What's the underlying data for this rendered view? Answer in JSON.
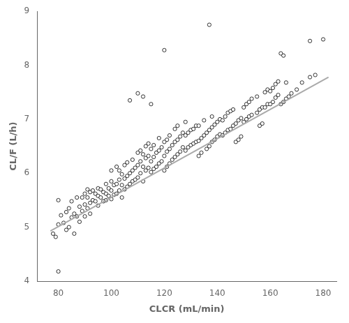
{
  "chart_data": {
    "type": "scatter",
    "x_label": "CLCR (mL/min)",
    "y_label": "CL/F (L/h)",
    "xlim": [
      72,
      185
    ],
    "ylim": [
      4.0,
      9.0
    ],
    "xticks": [
      80,
      100,
      120,
      140,
      160,
      180
    ],
    "yticks": [
      4,
      5,
      6,
      7,
      8,
      9
    ],
    "grid": false,
    "series": [
      {
        "type": "scatter",
        "marker": "circle",
        "color": "black",
        "x": [
          78,
          79,
          80,
          80,
          81,
          82,
          83,
          83,
          84,
          84,
          85,
          85,
          86,
          86,
          87,
          87,
          88,
          88,
          89,
          89,
          80,
          90,
          90,
          90,
          91,
          91,
          91,
          92,
          92,
          92,
          93,
          93,
          94,
          94,
          95,
          95,
          95,
          96,
          96,
          97,
          97,
          98,
          98,
          98,
          99,
          99,
          100,
          100,
          100,
          100,
          101,
          101,
          102,
          102,
          102,
          103,
          103,
          103,
          104,
          104,
          104,
          105,
          105,
          105,
          106,
          106,
          106,
          107,
          107,
          107,
          108,
          108,
          108,
          109,
          109,
          110,
          110,
          110,
          110,
          111,
          111,
          111,
          112,
          112,
          112,
          112,
          113,
          113,
          113,
          114,
          114,
          114,
          115,
          115,
          115,
          115,
          116,
          116,
          116,
          117,
          117,
          118,
          118,
          118,
          119,
          119,
          120,
          120,
          120,
          120,
          121,
          121,
          121,
          122,
          122,
          122,
          123,
          123,
          124,
          124,
          124,
          125,
          125,
          125,
          126,
          126,
          127,
          127,
          128,
          128,
          128,
          129,
          129,
          130,
          130,
          131,
          131,
          132,
          132,
          133,
          133,
          133,
          134,
          134,
          135,
          135,
          136,
          136,
          137,
          137,
          137,
          138,
          138,
          138,
          139,
          139,
          140,
          140,
          141,
          141,
          142,
          142,
          143,
          143,
          144,
          144,
          145,
          145,
          146,
          146,
          147,
          147,
          148,
          148,
          149,
          149,
          150,
          150,
          151,
          151,
          152,
          152,
          153,
          153,
          155,
          155,
          156,
          156,
          157,
          157,
          158,
          158,
          159,
          159,
          160,
          160,
          161,
          161,
          162,
          162,
          163,
          163,
          164,
          164,
          165,
          165,
          166,
          166,
          167,
          168,
          170,
          172,
          175,
          175,
          177,
          180
        ],
        "values": [
          4.88,
          4.82,
          5.05,
          5.5,
          5.22,
          5.08,
          5.28,
          4.95,
          5.35,
          5.0,
          5.18,
          5.48,
          5.25,
          4.88,
          5.2,
          5.55,
          5.38,
          5.1,
          5.3,
          5.55,
          4.18,
          5.42,
          5.62,
          5.2,
          5.35,
          5.55,
          5.7,
          5.45,
          5.65,
          5.25,
          5.5,
          5.68,
          5.48,
          5.62,
          5.4,
          5.58,
          5.72,
          5.55,
          5.7,
          5.48,
          5.65,
          5.5,
          5.62,
          5.8,
          5.58,
          5.72,
          5.52,
          5.68,
          5.85,
          6.05,
          5.6,
          5.78,
          5.62,
          5.8,
          6.12,
          5.68,
          5.88,
          6.05,
          5.55,
          5.78,
          5.98,
          5.7,
          5.9,
          6.15,
          5.75,
          5.95,
          6.2,
          5.8,
          6.0,
          7.35,
          5.85,
          6.05,
          6.25,
          5.88,
          6.1,
          5.92,
          6.15,
          6.38,
          7.48,
          6.0,
          6.22,
          6.42,
          5.85,
          6.12,
          6.35,
          7.42,
          6.05,
          6.28,
          6.5,
          6.1,
          6.32,
          6.55,
          6.02,
          6.22,
          6.45,
          7.28,
          6.08,
          6.3,
          6.52,
          6.12,
          6.38,
          6.18,
          6.42,
          6.65,
          6.22,
          6.48,
          6.05,
          6.32,
          6.58,
          8.28,
          6.12,
          6.4,
          6.62,
          6.18,
          6.45,
          6.7,
          6.25,
          6.52,
          6.3,
          6.58,
          6.82,
          6.35,
          6.62,
          6.88,
          6.4,
          6.68,
          6.48,
          6.75,
          6.42,
          6.7,
          6.95,
          6.48,
          6.75,
          6.52,
          6.8,
          6.55,
          6.82,
          6.58,
          6.88,
          6.32,
          6.6,
          6.88,
          6.38,
          6.65,
          6.7,
          6.98,
          6.45,
          6.75,
          6.5,
          6.8,
          8.75,
          6.58,
          6.85,
          7.05,
          6.62,
          6.9,
          6.68,
          6.95,
          6.72,
          7.0,
          6.7,
          6.98,
          6.75,
          7.05,
          6.8,
          7.12,
          6.82,
          7.15,
          6.88,
          7.18,
          6.58,
          6.92,
          6.62,
          6.98,
          6.68,
          7.02,
          6.95,
          7.22,
          7.0,
          7.28,
          7.05,
          7.32,
          7.08,
          7.38,
          7.12,
          7.42,
          6.88,
          7.18,
          6.92,
          7.22,
          7.22,
          7.5,
          7.28,
          7.55,
          7.28,
          7.52,
          7.32,
          7.58,
          7.4,
          7.65,
          7.45,
          7.7,
          7.28,
          8.22,
          7.32,
          8.18,
          7.38,
          7.68,
          7.42,
          7.48,
          7.55,
          7.68,
          7.78,
          8.45,
          7.82,
          8.48
        ]
      },
      {
        "type": "line",
        "color": "#aaaaaa",
        "x": [
          77,
          182
        ],
        "values": [
          4.93,
          7.78
        ]
      }
    ]
  }
}
